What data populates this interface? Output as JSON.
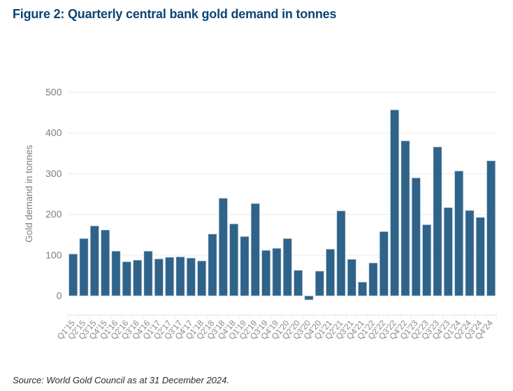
{
  "figure": {
    "title": "Figure 2: Quarterly central bank gold demand in tonnes",
    "source": "Source: World Gold Council as at 31 December 2024."
  },
  "colors": {
    "title": "#0d4474",
    "bar": "#2f6389",
    "bar_edge": "#d7e2ec",
    "grid": "#e9e9e9",
    "axis_line": "#ececec",
    "tick_label": "#8a8a8a",
    "y_tick_label": "#7d7d7d",
    "axis_title": "#7f7f7f",
    "source_text": "#2b2b2b",
    "background": "#ffffff"
  },
  "chart_data": {
    "type": "bar",
    "title": "",
    "xlabel": "",
    "ylabel": "Gold demand in tonnes",
    "ylim": [
      -45,
      500
    ],
    "yticks": [
      0,
      100,
      200,
      300,
      400,
      500
    ],
    "grid": true,
    "legend": false,
    "categories": [
      "Q1'15",
      "Q2'15",
      "Q3'15",
      "Q4'15",
      "Q1'16",
      "Q2'16",
      "Q3'16",
      "Q4'16",
      "Q1'17",
      "Q2'17",
      "Q3'17",
      "Q4'17",
      "Q1'18",
      "Q2'18",
      "Q3'18",
      "Q4'18",
      "Q1'19",
      "Q2'19",
      "Q3'19",
      "Q4'19",
      "Q1'20",
      "Q2'20",
      "Q3'20",
      "Q4'20",
      "Q1'21",
      "Q2'21",
      "Q3'21",
      "Q4'21",
      "Q1'22",
      "Q2'22",
      "Q3'22",
      "Q4'22",
      "Q1'23",
      "Q2'23",
      "Q3'23",
      "Q4'23",
      "Q1'24",
      "Q2'24",
      "Q3'24",
      "Q4'24"
    ],
    "values": [
      103,
      141,
      172,
      162,
      110,
      84,
      88,
      110,
      91,
      95,
      96,
      93,
      86,
      152,
      240,
      177,
      146,
      227,
      112,
      117,
      141,
      63,
      -10,
      61,
      115,
      209,
      90,
      34,
      81,
      158,
      457,
      381,
      290,
      175,
      366,
      217,
      307,
      210,
      193,
      332
    ]
  }
}
